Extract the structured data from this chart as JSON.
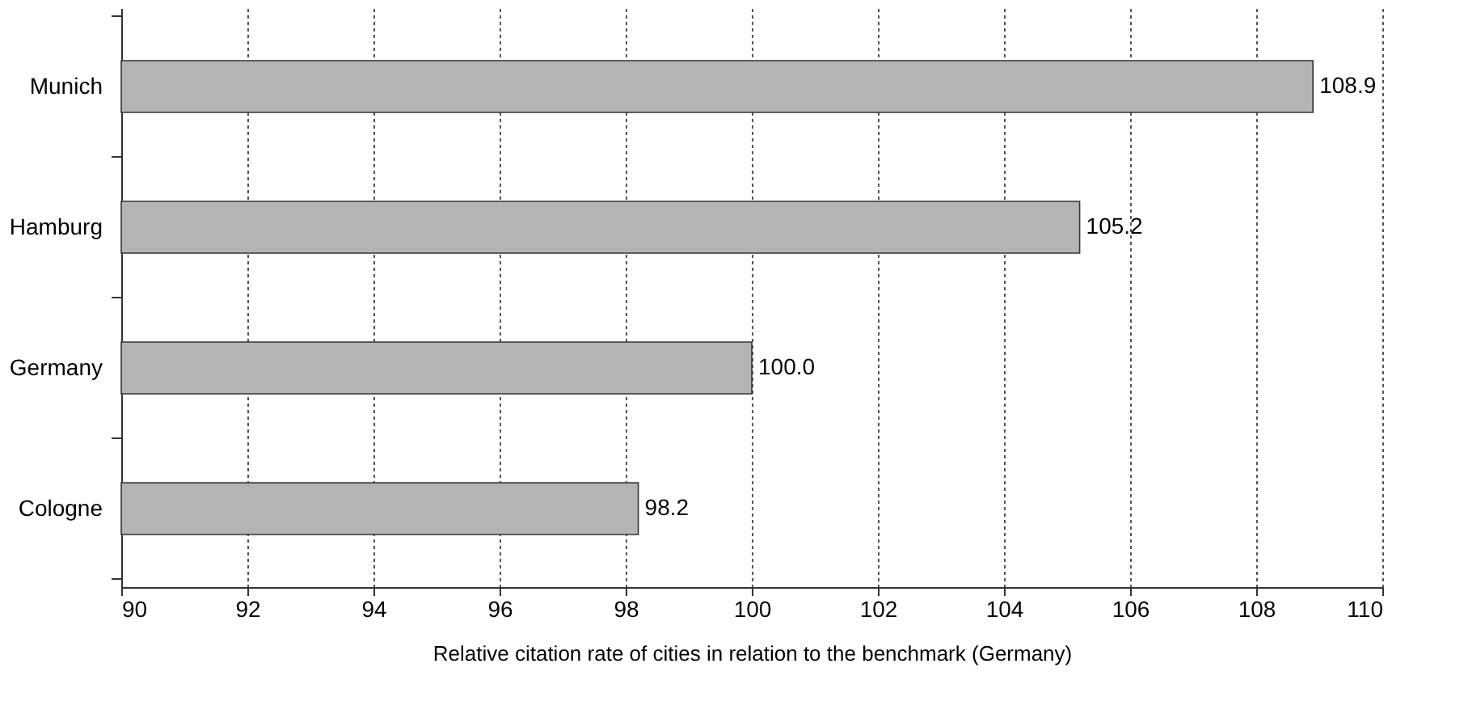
{
  "chart_data": {
    "type": "bar",
    "orientation": "horizontal",
    "xlabel": "Relative citation rate of cities in relation to the benchmark (Germany)",
    "categories": [
      "Munich",
      "Hamburg",
      "Germany",
      "Cologne"
    ],
    "values": [
      108.9,
      105.2,
      100.0,
      98.2
    ],
    "value_labels": [
      "108.9",
      "105.2",
      "100.0",
      "98.2"
    ],
    "color": "#b4b4b4",
    "xlim": [
      90,
      110
    ],
    "xticks": [
      90,
      92,
      94,
      96,
      98,
      100,
      102,
      104,
      106,
      108,
      110
    ],
    "grid": "x"
  }
}
